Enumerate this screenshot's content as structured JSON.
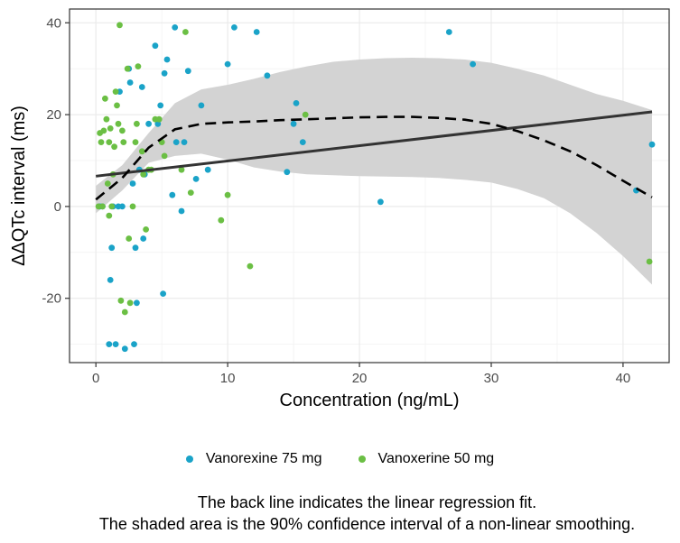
{
  "chart_data": {
    "type": "scatter",
    "xlabel": "Concentration (ng/mL)",
    "ylabel": "ΔΔQTc interval (ms)",
    "xlim": [
      -2,
      43.5
    ],
    "ylim": [
      -34,
      43
    ],
    "xticks": [
      0,
      10,
      20,
      30,
      40
    ],
    "yticks": [
      -20,
      0,
      20,
      40
    ],
    "grid": true,
    "series": [
      {
        "name": "Vanorexine 75 mg",
        "color": "#1aa3c8",
        "x": [
          0.3,
          0.5,
          1.0,
          1.1,
          1.2,
          1.3,
          1.5,
          1.7,
          1.8,
          2.0,
          2.2,
          2.5,
          2.6,
          2.8,
          2.9,
          3.0,
          3.1,
          3.3,
          3.5,
          3.6,
          3.7,
          4.0,
          4.5,
          4.7,
          4.9,
          5.1,
          5.2,
          5.4,
          5.8,
          6.0,
          6.1,
          6.5,
          6.7,
          7.0,
          7.6,
          8.0,
          8.5,
          10.0,
          10.5,
          12.2,
          13.0,
          14.5,
          15.0,
          15.2,
          15.7,
          21.6,
          26.8,
          28.6,
          41.0,
          42.2
        ],
        "y": [
          0,
          0,
          -30,
          -16,
          -9,
          0,
          -30,
          0,
          25,
          0,
          -31,
          30,
          27,
          5,
          -30,
          -9,
          -21,
          8,
          26,
          -7,
          7,
          18,
          35,
          18,
          22,
          -19,
          29,
          32,
          2.5,
          39,
          14,
          -1,
          14,
          29.5,
          6,
          22,
          8,
          31,
          39,
          38,
          28.5,
          7.5,
          18,
          22.5,
          14,
          1,
          38,
          31,
          3.5,
          13.5
        ]
      },
      {
        "name": "Vanoxerine 50 mg",
        "color": "#6bbf44",
        "x": [
          0.2,
          0.3,
          0.4,
          0.5,
          0.6,
          0.7,
          0.8,
          0.9,
          1.0,
          1.0,
          1.1,
          1.2,
          1.3,
          1.4,
          1.5,
          1.6,
          1.7,
          1.8,
          1.9,
          2.0,
          2.1,
          2.2,
          2.4,
          2.5,
          2.6,
          2.8,
          3.0,
          3.1,
          3.2,
          3.5,
          3.6,
          3.8,
          4.0,
          4.2,
          4.5,
          4.8,
          5.0,
          5.2,
          6.5,
          6.8,
          7.2,
          9.5,
          10.0,
          11.7,
          15.9,
          42.0
        ],
        "y": [
          0,
          16,
          14,
          0,
          16.5,
          23.5,
          19,
          5,
          14,
          -2,
          17,
          0,
          7,
          13,
          25,
          22,
          18,
          39.5,
          -20.5,
          16.5,
          14,
          -23,
          30,
          -7,
          -21,
          0,
          14,
          18,
          30.5,
          12,
          7,
          -5,
          8,
          8,
          19,
          19,
          14,
          11,
          8,
          38,
          3,
          -3,
          2.5,
          -13,
          20,
          -12
        ]
      }
    ],
    "linear_fit": {
      "name": "linear regression fit",
      "x": [
        0,
        42.2
      ],
      "y": [
        6.6,
        20.6
      ]
    },
    "smooth": {
      "name": "non-linear smoothing (90% CI)",
      "x": [
        0,
        2,
        4,
        6,
        8,
        10,
        12,
        14,
        16,
        18,
        20,
        22,
        24,
        26,
        28,
        30,
        32,
        34,
        36,
        38,
        40,
        42.2
      ],
      "y": [
        1.5,
        6.2,
        12.8,
        16.8,
        18,
        18.3,
        18.5,
        18.8,
        19,
        19.2,
        19.4,
        19.5,
        19.5,
        19.3,
        18.9,
        18,
        16.4,
        14.4,
        12,
        9,
        5.6,
        2
      ],
      "lower": [
        -1.5,
        3.5,
        9.5,
        11,
        11.5,
        10.2,
        8.5,
        7.6,
        7.0,
        6.8,
        6.6,
        6.5,
        6.4,
        6.2,
        5.8,
        5.2,
        3.8,
        1.8,
        -1.5,
        -5.8,
        -10.8,
        -17
      ],
      "upper": [
        4.5,
        9,
        16,
        22.5,
        25.5,
        26.5,
        27.8,
        29.3,
        30.5,
        31.5,
        32,
        32.3,
        32.4,
        32.3,
        32,
        31.3,
        30,
        28.5,
        26.5,
        24.5,
        23,
        21
      ]
    }
  },
  "captions": [
    "The back line indicates the linear regression fit.",
    "The shaded area is the 90% confidence interval of a non-linear smoothing."
  ]
}
